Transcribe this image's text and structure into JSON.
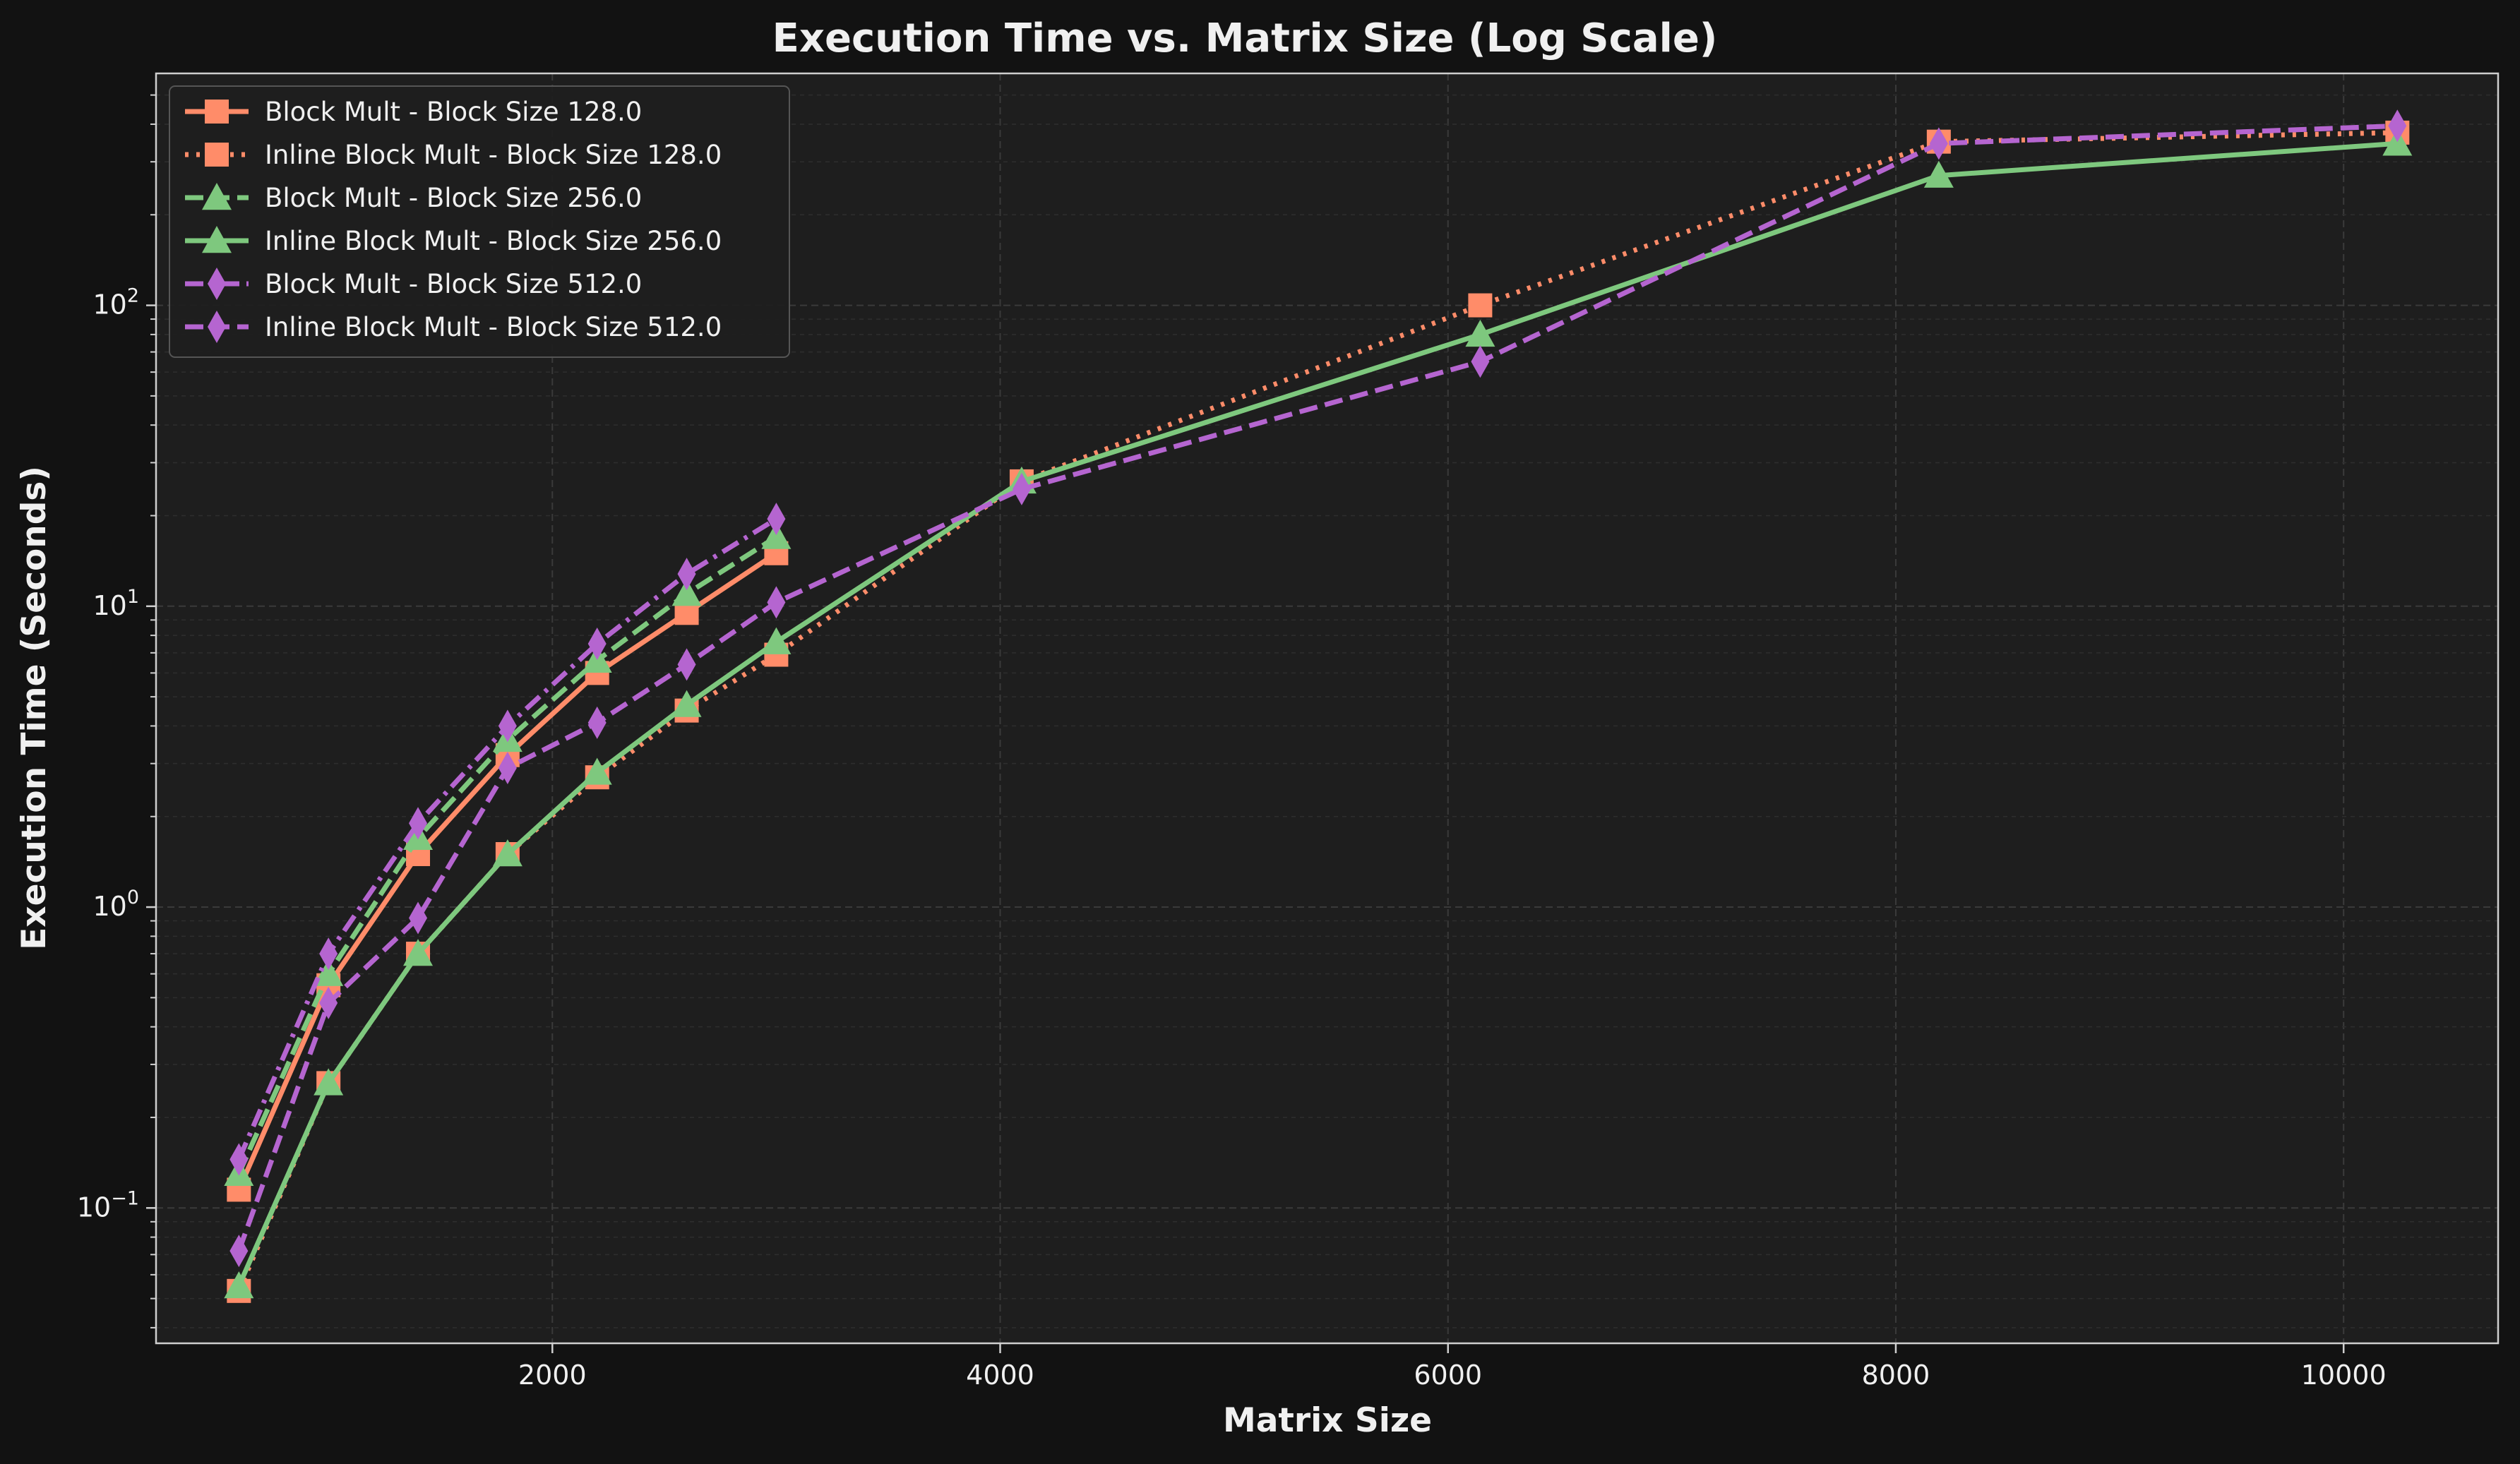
{
  "chart_data": {
    "type": "line",
    "title": "Execution Time vs. Matrix Size (Log Scale)",
    "xlabel": "Matrix Size",
    "ylabel": "Execution Time (Seconds)",
    "xlim": [
      230,
      10690
    ],
    "ylim": [
      0.0355,
      590
    ],
    "yscale": "log",
    "x_ticks": [
      2000,
      4000,
      6000,
      8000,
      10000
    ],
    "x_tick_labels": [
      "2000",
      "4000",
      "6000",
      "8000",
      "10000"
    ],
    "y_ticks": [
      0.1,
      1,
      10,
      100
    ],
    "y_tick_labels": [
      {
        "base": "10",
        "exp": "−1"
      },
      {
        "base": "10",
        "exp": "0"
      },
      {
        "base": "10",
        "exp": "1"
      },
      {
        "base": "10",
        "exp": "2"
      }
    ],
    "grid": true,
    "legend_position": "top-left",
    "colors": {
      "figure_background": "#121212",
      "axes_background": "#1e1e1e",
      "text": "#f0f0f0",
      "grid": "#3a3a3a",
      "frame": "#cfcfcf"
    },
    "series": [
      {
        "name": "Block Mult - Block Size 128.0",
        "color": "#ff8c69",
        "linestyle": "solid",
        "marker": "square",
        "x": [
          600,
          1000,
          1400,
          1800,
          2200,
          2600,
          3000
        ],
        "y": [
          0.115,
          0.55,
          1.5,
          3.2,
          6.0,
          9.5,
          15.0
        ]
      },
      {
        "name": "Inline Block Mult - Block Size 128.0",
        "color": "#ff8c69",
        "linestyle": "dotted",
        "marker": "square",
        "x": [
          600,
          1000,
          1400,
          1800,
          2200,
          2600,
          3000,
          4096,
          6144,
          8192,
          10240
        ],
        "y": [
          0.053,
          0.26,
          0.7,
          1.5,
          2.7,
          4.5,
          6.9,
          26.0,
          100.0,
          350.0,
          375.0
        ]
      },
      {
        "name": "Block Mult - Block Size 256.0",
        "color": "#7ec87e",
        "linestyle": "dashed",
        "marker": "triangle",
        "x": [
          600,
          1000,
          1400,
          1800,
          2200,
          2600,
          3000
        ],
        "y": [
          0.13,
          0.6,
          1.7,
          3.6,
          6.6,
          11.0,
          17.0
        ]
      },
      {
        "name": "Inline Block Mult - Block Size 256.0",
        "color": "#7ec87e",
        "linestyle": "solid",
        "marker": "triangle",
        "x": [
          600,
          1000,
          1400,
          1800,
          2200,
          2600,
          3000,
          4096,
          6144,
          8192,
          10240
        ],
        "y": [
          0.055,
          0.26,
          0.7,
          1.5,
          2.8,
          4.7,
          7.6,
          26.0,
          80.0,
          270.0,
          345.0
        ]
      },
      {
        "name": "Block Mult - Block Size 512.0",
        "color": "#b565d0",
        "linestyle": "dashdot",
        "marker": "thin-diamond",
        "x": [
          600,
          1000,
          1400,
          1800,
          2200,
          2600,
          3000
        ],
        "y": [
          0.145,
          0.7,
          1.9,
          4.0,
          7.5,
          12.8,
          19.5
        ]
      },
      {
        "name": "Inline Block Mult - Block Size 512.0",
        "color": "#b565d0",
        "linestyle": "dashed",
        "marker": "thin-diamond",
        "x": [
          600,
          1000,
          1400,
          1800,
          2200,
          2600,
          3000,
          4096,
          6144,
          8192,
          10240
        ],
        "y": [
          0.072,
          0.48,
          0.92,
          2.9,
          4.1,
          6.4,
          10.3,
          24.5,
          65.0,
          345.0,
          395.0
        ]
      }
    ]
  }
}
